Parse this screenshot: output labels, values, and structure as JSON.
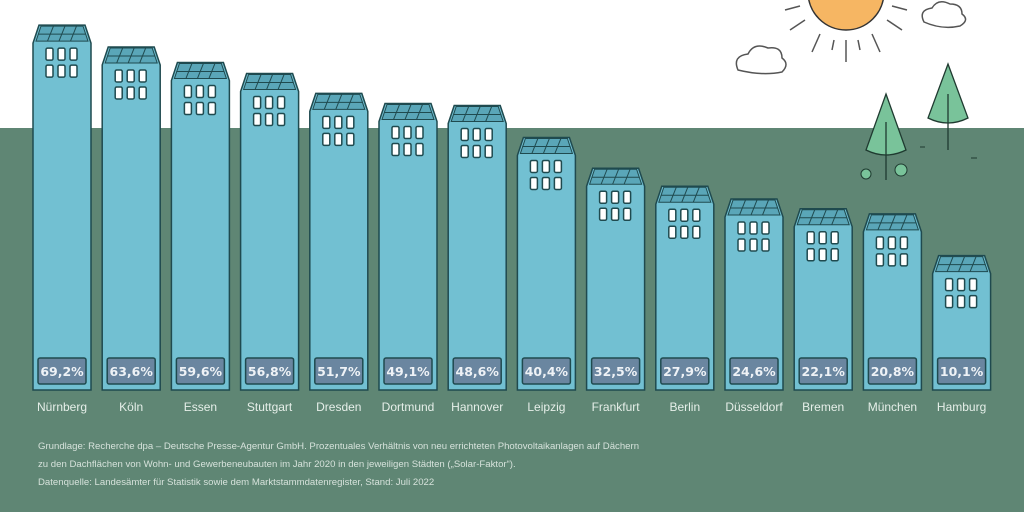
{
  "chart_data": {
    "type": "bar",
    "categories": [
      "Nürnberg",
      "Köln",
      "Essen",
      "Stuttgart",
      "Dresden",
      "Dortmund",
      "Hannover",
      "Leipzig",
      "Frankfurt",
      "Berlin",
      "Düsseldorf",
      "Bremen",
      "München",
      "Hamburg"
    ],
    "values": [
      69.2,
      63.6,
      59.6,
      56.8,
      51.7,
      49.1,
      48.6,
      40.4,
      32.5,
      27.9,
      24.6,
      22.1,
      20.8,
      10.1
    ],
    "labels": [
      "69,2%",
      "63,6%",
      "59,6%",
      "56,8%",
      "51,7%",
      "49,1%",
      "48,6%",
      "40,4%",
      "32,5%",
      "27,9%",
      "24,6%",
      "22,1%",
      "20,8%",
      "10,1%"
    ],
    "unit": "%",
    "title": "",
    "xlabel": "",
    "ylabel": ""
  },
  "footnotes": [
    "Grundlage: Recherche dpa – Deutsche Presse-Agentur GmbH. Prozentuales Verhältnis von neu errichteten Photovoltaikanlagen auf Dächern",
    "zu den Dachflächen von Wohn- und Gewerbeneubauten im Jahr 2020 in den jeweiligen Städten („Solar-Faktor“).",
    "Datenquelle: Landesämter für Statistik sowie dem Marktstammdatenregister, Stand: Juli 2022"
  ],
  "colors": {
    "building": "#72c0d2",
    "outline": "#1f4a4f",
    "label_box": "#6a86a0",
    "ground": "#5f8674",
    "sun": "#f6b663",
    "tree": "#79c39a"
  }
}
